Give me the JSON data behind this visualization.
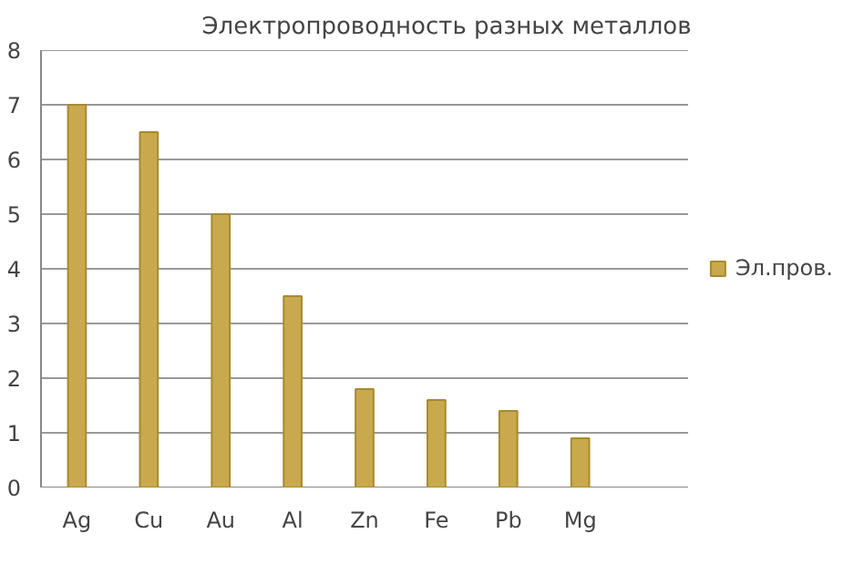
{
  "chart_data": {
    "type": "bar",
    "title": "Электропроводность разных металлов",
    "categories": [
      "Ag",
      "Cu",
      "Au",
      "Al",
      "Zn",
      "Fe",
      "Pb",
      "Mg",
      null
    ],
    "series": [
      {
        "name": "Эл.пров.",
        "color": "#c9a94e",
        "values": [
          7,
          6.5,
          5,
          3.5,
          1.8,
          1.6,
          1.4,
          0.9,
          null
        ]
      }
    ],
    "ylim": [
      0,
      8
    ],
    "yticks": [
      0,
      1,
      2,
      3,
      4,
      5,
      6,
      7,
      8
    ],
    "grid": "y",
    "legend": "right"
  }
}
